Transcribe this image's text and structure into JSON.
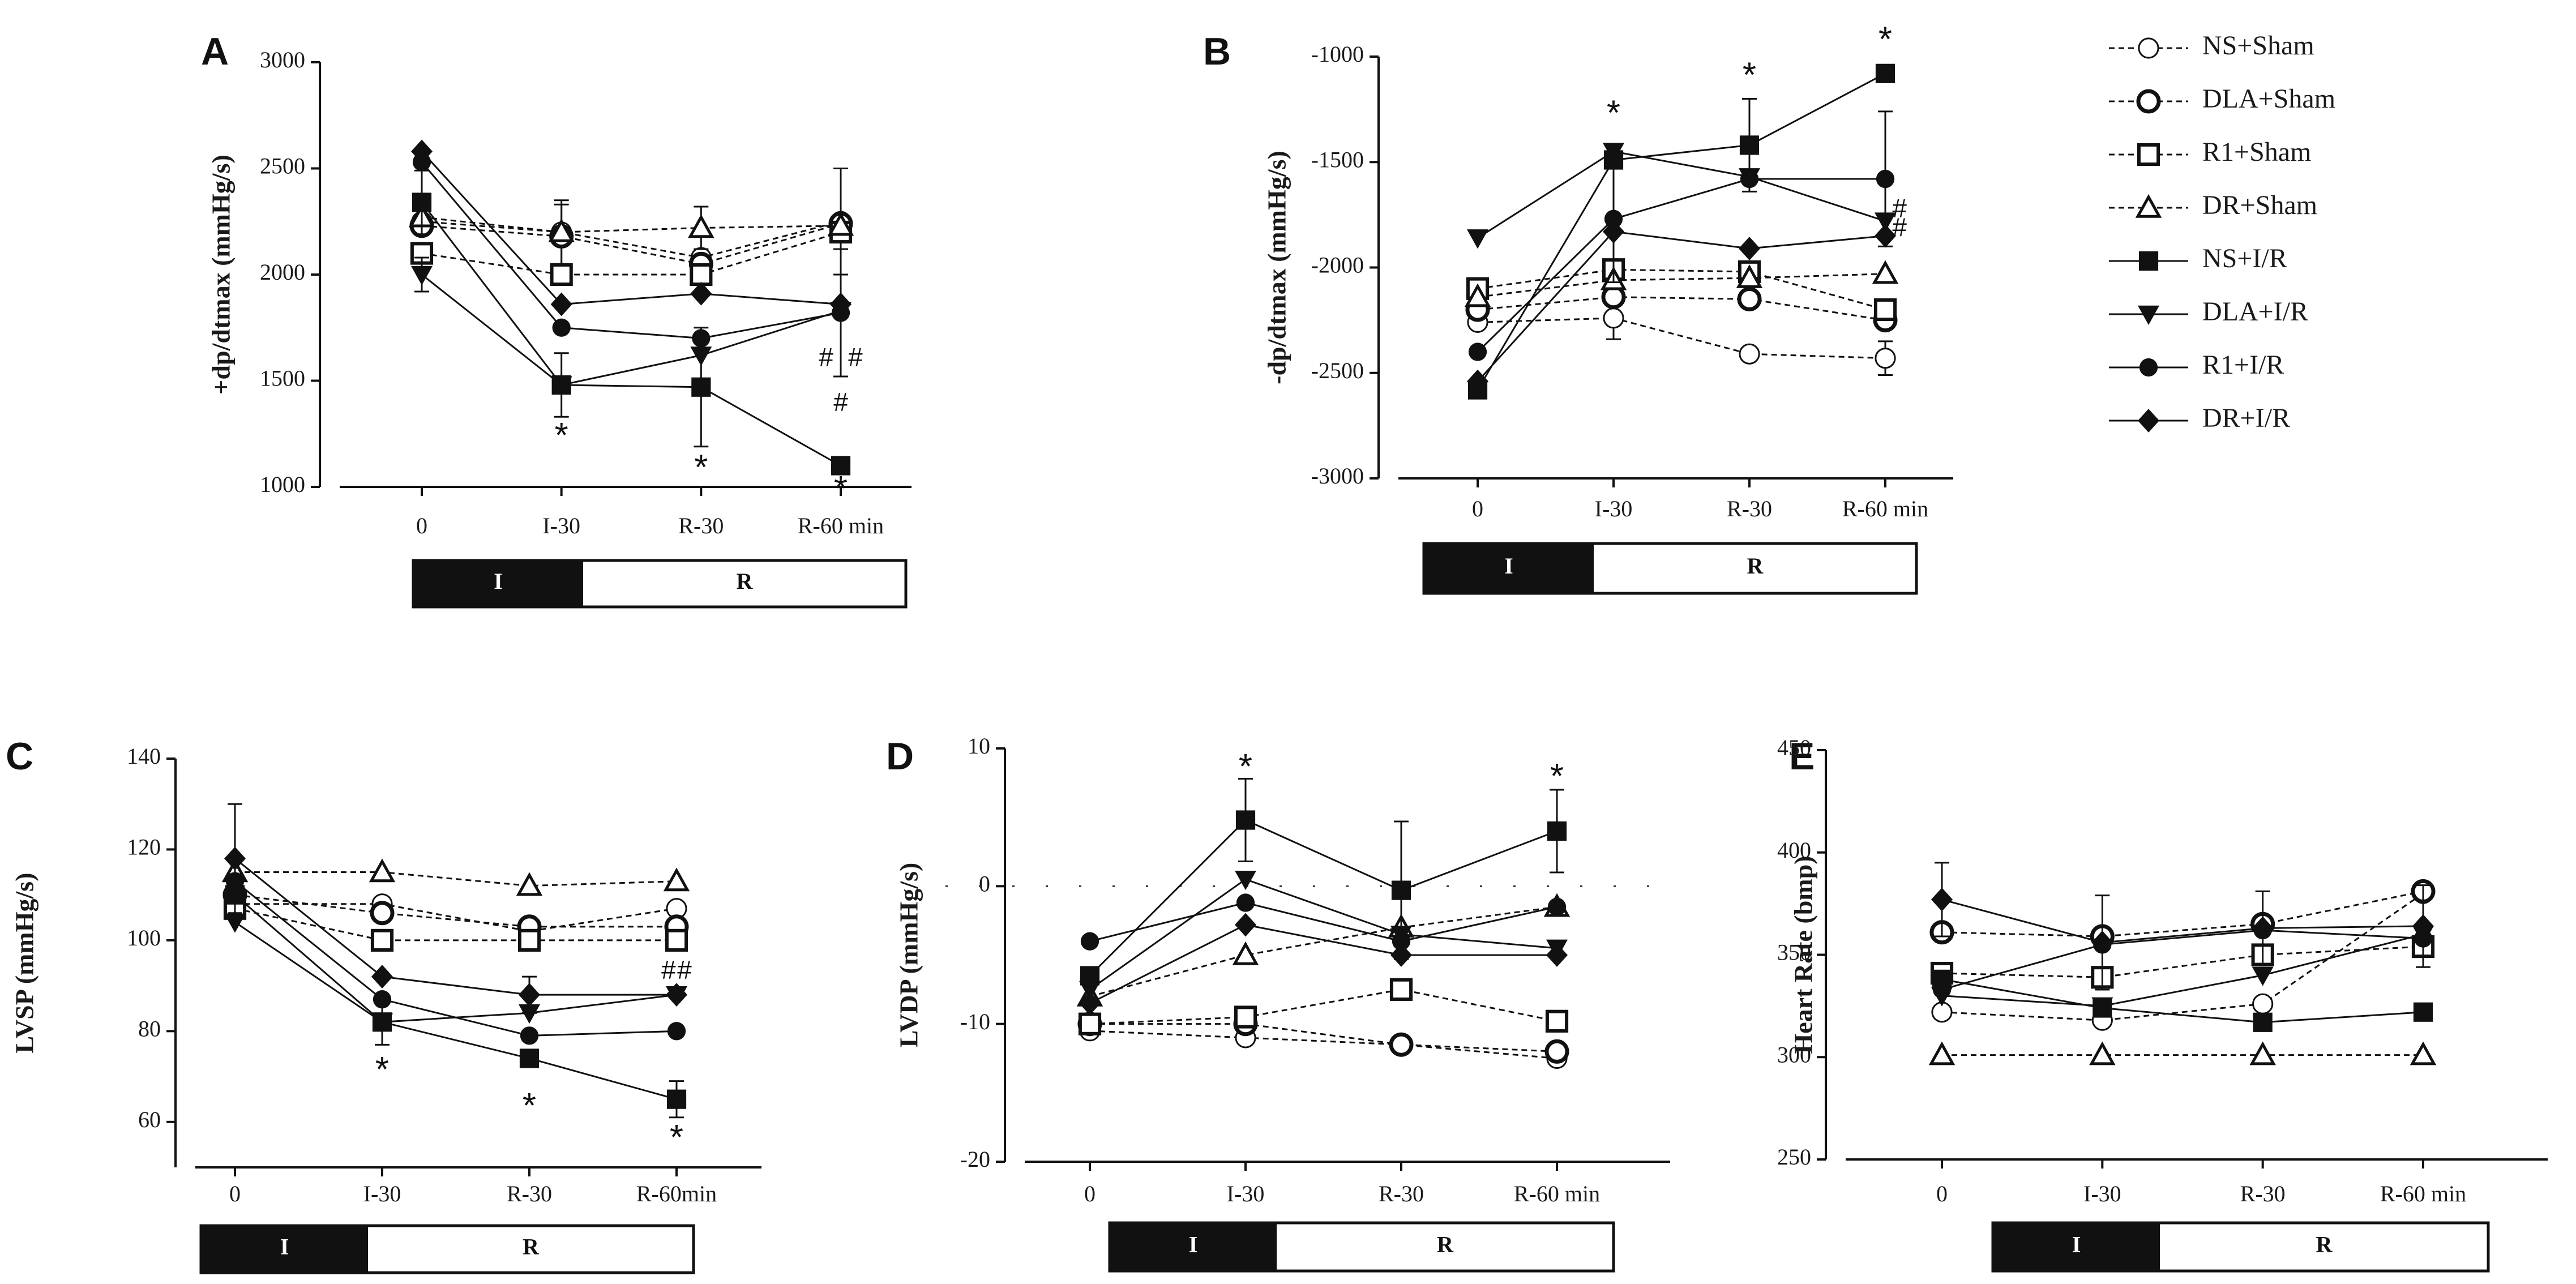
{
  "figure": {
    "legend": [
      "NS+Sham",
      "DLA+Sham",
      "R1+Sham",
      "DR+Sham",
      "NS+I/R",
      "DLA+I/R",
      "R1+I/R",
      "DR+I/R"
    ],
    "phase_bar": {
      "ischemia": "I",
      "reperfusion": "R"
    }
  },
  "chart_data": [
    {
      "id": "A",
      "type": "line",
      "ylabel": "+dp/dtmax (mmHg/s)",
      "categories": [
        "0",
        "I-30",
        "R-30",
        "R-60 min"
      ],
      "ylim": [
        1000,
        3000
      ],
      "yticks": [
        1000,
        1500,
        2000,
        2500,
        3000
      ],
      "series": [
        {
          "name": "NS+Sham",
          "values": [
            2250,
            2200,
            2080,
            2250
          ],
          "err": [
            0,
            150,
            0,
            250
          ]
        },
        {
          "name": "DLA+Sham",
          "values": [
            2230,
            2180,
            2050,
            2240
          ],
          "err": [
            0,
            150,
            0,
            0
          ]
        },
        {
          "name": "R1+Sham",
          "values": [
            2100,
            2000,
            2000,
            2200
          ],
          "err": [
            0,
            0,
            0,
            0
          ]
        },
        {
          "name": "DR+Sham",
          "values": [
            2270,
            2200,
            2220,
            2230
          ],
          "err": [
            0,
            0,
            100,
            0
          ]
        },
        {
          "name": "NS+I/R",
          "values": [
            2340,
            1480,
            1470,
            1100
          ],
          "err": [
            150,
            150,
            280,
            0
          ]
        },
        {
          "name": "DLA+I/R",
          "values": [
            2000,
            1480,
            1620,
            1830
          ],
          "err": [
            80,
            0,
            0,
            0
          ]
        },
        {
          "name": "R1+I/R",
          "values": [
            2530,
            1750,
            1700,
            1820
          ],
          "err": [
            0,
            0,
            0,
            300
          ]
        },
        {
          "name": "DR+I/R",
          "values": [
            2580,
            1860,
            1910,
            1860
          ],
          "err": [
            0,
            0,
            0,
            0
          ]
        }
      ],
      "annotations": [
        {
          "cat": 1,
          "value": 1230,
          "text": "*"
        },
        {
          "cat": 2,
          "value": 1080,
          "text": "*"
        },
        {
          "cat": 3,
          "value": 980,
          "text": "*"
        },
        {
          "cat": 3,
          "value": 1600,
          "text": "#",
          "dx": -0.35
        },
        {
          "cat": 3,
          "value": 1600,
          "text": "#",
          "dx": 0.35
        },
        {
          "cat": 3,
          "value": 1390,
          "text": "#"
        }
      ]
    },
    {
      "id": "B",
      "type": "line",
      "ylabel": "-dp/dtmax (mmHg/s)",
      "categories": [
        "0",
        "I-30",
        "R-30",
        "R-60 min"
      ],
      "ylim": [
        -3000,
        -1000
      ],
      "yticks": [
        -3000,
        -2500,
        -2000,
        -1500,
        -1000
      ],
      "series": [
        {
          "name": "NS+Sham",
          "values": [
            -2260,
            -2240,
            -2410,
            -2430
          ],
          "err": [
            0,
            100,
            0,
            80
          ]
        },
        {
          "name": "DLA+Sham",
          "values": [
            -2200,
            -2140,
            -2150,
            -2250
          ],
          "err": [
            0,
            0,
            0,
            0
          ]
        },
        {
          "name": "R1+Sham",
          "values": [
            -2100,
            -2010,
            -2020,
            -2200
          ],
          "err": [
            0,
            0,
            0,
            0
          ]
        },
        {
          "name": "DR+Sham",
          "values": [
            -2140,
            -2060,
            -2050,
            -2030
          ],
          "err": [
            0,
            0,
            0,
            0
          ]
        },
        {
          "name": "NS+I/R",
          "values": [
            -2580,
            -1490,
            -1420,
            -1080
          ],
          "err": [
            0,
            0,
            220,
            0
          ]
        },
        {
          "name": "DLA+I/R",
          "values": [
            -1860,
            -1450,
            -1570,
            -1780
          ],
          "err": [
            0,
            0,
            0,
            0
          ]
        },
        {
          "name": "R1+I/R",
          "values": [
            -2400,
            -1770,
            -1580,
            -1580
          ],
          "err": [
            0,
            300,
            0,
            320
          ]
        },
        {
          "name": "DR+I/R",
          "values": [
            -2540,
            -1830,
            -1910,
            -1850
          ],
          "err": [
            0,
            0,
            0,
            0
          ]
        }
      ],
      "annotations": [
        {
          "cat": 1,
          "value": -1280,
          "text": "*"
        },
        {
          "cat": 2,
          "value": -1100,
          "text": "*"
        },
        {
          "cat": 3,
          "value": -930,
          "text": "*"
        },
        {
          "cat": 3,
          "value": -1730,
          "text": "#",
          "dx": 0.35
        },
        {
          "cat": 3,
          "value": -1820,
          "text": "#",
          "dx": 0.35
        }
      ]
    },
    {
      "id": "C",
      "type": "line",
      "ylabel": "LVSP (mmHg/s)",
      "categories": [
        "0",
        "I-30",
        "R-30",
        "R-60min"
      ],
      "ylim": [
        50,
        140
      ],
      "yticks": [
        60,
        80,
        100,
        120,
        140
      ],
      "series": [
        {
          "name": "NS+Sham",
          "values": [
            108,
            108,
            102,
            107
          ],
          "err": [
            0,
            0,
            0,
            0
          ]
        },
        {
          "name": "DLA+Sham",
          "values": [
            110,
            106,
            103,
            103
          ],
          "err": [
            0,
            0,
            0,
            0
          ]
        },
        {
          "name": "R1+Sham",
          "values": [
            107,
            100,
            100,
            100
          ],
          "err": [
            0,
            0,
            0,
            0
          ]
        },
        {
          "name": "DR+Sham",
          "values": [
            115,
            115,
            112,
            113
          ],
          "err": [
            0,
            0,
            0,
            0
          ]
        },
        {
          "name": "NS+I/R",
          "values": [
            110,
            82,
            74,
            65
          ],
          "err": [
            0,
            5,
            0,
            4
          ]
        },
        {
          "name": "DLA+I/R",
          "values": [
            104,
            82,
            84,
            88
          ],
          "err": [
            0,
            0,
            0,
            0
          ]
        },
        {
          "name": "R1+I/R",
          "values": [
            113,
            87,
            79,
            80
          ],
          "err": [
            0,
            0,
            0,
            0
          ]
        },
        {
          "name": "DR+I/R",
          "values": [
            118,
            92,
            88,
            88
          ],
          "err": [
            12,
            0,
            4,
            0
          ]
        }
      ],
      "annotations": [
        {
          "cat": 1,
          "value": 71,
          "text": "*"
        },
        {
          "cat": 2,
          "value": 63,
          "text": "*"
        },
        {
          "cat": 3,
          "value": 56,
          "text": "*"
        },
        {
          "cat": 3,
          "value": 93,
          "text": "#",
          "dx": -0.18
        },
        {
          "cat": 3,
          "value": 93,
          "text": "#",
          "dx": 0.18
        }
      ]
    },
    {
      "id": "D",
      "type": "line",
      "ylabel": "LVDP (mmHg/s)",
      "categories": [
        "0",
        "I-30",
        "R-30",
        "R-60 min"
      ],
      "ylim": [
        -20,
        10
      ],
      "yticks": [
        -20,
        -10,
        0,
        10
      ],
      "series": [
        {
          "name": "NS+Sham",
          "values": [
            -10.5,
            -11,
            -11.5,
            -12.5
          ],
          "err": [
            0,
            0,
            0,
            0
          ]
        },
        {
          "name": "DLA+Sham",
          "values": [
            -10,
            -10,
            -11.5,
            -12
          ],
          "err": [
            0,
            0,
            0,
            0
          ]
        },
        {
          "name": "R1+Sham",
          "values": [
            -10,
            -9.5,
            -7.5,
            -9.8
          ],
          "err": [
            0,
            0,
            0,
            0
          ]
        },
        {
          "name": "DR+Sham",
          "values": [
            -8,
            -5,
            -3,
            -1.5
          ],
          "err": [
            0,
            0,
            0,
            0
          ]
        },
        {
          "name": "NS+I/R",
          "values": [
            -6.5,
            4.8,
            -0.3,
            4
          ],
          "err": [
            0,
            3,
            5,
            3
          ]
        },
        {
          "name": "DLA+I/R",
          "values": [
            -7.5,
            0.5,
            -3.5,
            -4.5
          ],
          "err": [
            0,
            0,
            0,
            0
          ]
        },
        {
          "name": "R1+I/R",
          "values": [
            -4,
            -1.2,
            -4,
            -1.5
          ],
          "err": [
            0,
            0,
            0,
            0
          ]
        },
        {
          "name": "DR+I/R",
          "values": [
            -8.5,
            -2.8,
            -5,
            -5
          ],
          "err": [
            0,
            0,
            0,
            0
          ]
        }
      ],
      "annotations": [
        {
          "cat": 1,
          "value": 8.5,
          "text": "*"
        },
        {
          "cat": 3,
          "value": 7.8,
          "text": "*"
        }
      ]
    },
    {
      "id": "E",
      "type": "line",
      "ylabel": "Heart Rate (bmp)",
      "categories": [
        "0",
        "I-30",
        "R-30",
        "R-60 min"
      ],
      "ylim": [
        250,
        450
      ],
      "yticks": [
        250,
        300,
        350,
        400,
        450
      ],
      "series": [
        {
          "name": "NS+Sham",
          "values": [
            322,
            318,
            326,
            380
          ],
          "err": [
            0,
            0,
            0,
            0
          ]
        },
        {
          "name": "DLA+Sham",
          "values": [
            361,
            359,
            365,
            381
          ],
          "err": [
            0,
            0,
            0,
            0
          ]
        },
        {
          "name": "R1+Sham",
          "values": [
            341,
            339,
            350,
            354
          ],
          "err": [
            0,
            0,
            0,
            0
          ]
        },
        {
          "name": "DR+Sham",
          "values": [
            301,
            301,
            301,
            301
          ],
          "err": [
            0,
            0,
            0,
            0
          ]
        },
        {
          "name": "NS+I/R",
          "values": [
            338,
            324,
            317,
            322
          ],
          "err": [
            0,
            0,
            0,
            0
          ]
        },
        {
          "name": "DLA+I/R",
          "values": [
            330,
            325,
            340,
            360
          ],
          "err": [
            0,
            0,
            0,
            0
          ]
        },
        {
          "name": "R1+I/R",
          "values": [
            333,
            355,
            362,
            358
          ],
          "err": [
            0,
            0,
            0,
            0
          ]
        },
        {
          "name": "DR+I/R",
          "values": [
            377,
            356,
            363,
            364
          ],
          "err": [
            18,
            23,
            18,
            20
          ]
        }
      ],
      "annotations": []
    }
  ]
}
